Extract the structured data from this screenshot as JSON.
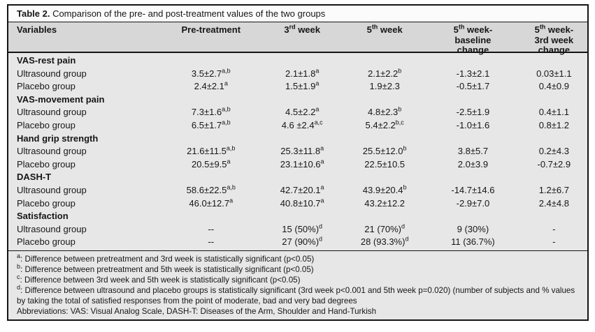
{
  "table": {
    "title": {
      "bold": "Table 2.",
      "rest": " Comparison of the pre- and post-treatment values of the two groups"
    },
    "headers": [
      {
        "text": "Variables"
      },
      {
        "text": "Pre-treatment"
      },
      {
        "num": "3",
        "sup": "rd",
        "after": " week"
      },
      {
        "num": "5",
        "sup": "th",
        "after": " week"
      },
      {
        "num": "5",
        "sup": "th",
        "after": " week-",
        "line2": "baseline",
        "line3": "change"
      },
      {
        "num": "5",
        "sup": "th",
        "after": " week-",
        "line2": "3rd week",
        "line3": "change"
      }
    ],
    "sections": [
      {
        "header": "VAS-rest pain",
        "rows": [
          {
            "label": "Ultrasound group",
            "cells": [
              {
                "v": "3.5±2.7",
                "s": "a,b"
              },
              {
                "v": "2.1±1.8",
                "s": "a"
              },
              {
                "v": "2.1±2.2",
                "s": "b"
              },
              {
                "v": "-1.3±2.1",
                "s": ""
              },
              {
                "v": "0.03±1.1",
                "s": ""
              }
            ]
          },
          {
            "label": "Placebo group",
            "cells": [
              {
                "v": "2.4±2.1",
                "s": "a"
              },
              {
                "v": "1.5±1.9",
                "s": "a"
              },
              {
                "v": "1.9±2.3",
                "s": ""
              },
              {
                "v": "-0.5±1.7",
                "s": ""
              },
              {
                "v": "0.4±0.9",
                "s": ""
              }
            ]
          }
        ]
      },
      {
        "header": "VAS-movement pain",
        "rows": [
          {
            "label": "Ultrasound group",
            "cells": [
              {
                "v": "7.3±1.6",
                "s": "a,b"
              },
              {
                "v": "4.5±2.2",
                "s": "a"
              },
              {
                "v": "4.8±2.3",
                "s": "b"
              },
              {
                "v": "-2.5±1.9",
                "s": ""
              },
              {
                "v": "0.4±1.1",
                "s": ""
              }
            ]
          },
          {
            "label": "Placebo group",
            "cells": [
              {
                "v": "6.5±1.7",
                "s": "a,b"
              },
              {
                "v": "4.6 ±2.4",
                "s": "a,c"
              },
              {
                "v": "5.4±2.2",
                "s": "b,c"
              },
              {
                "v": "-1.0±1.6",
                "s": ""
              },
              {
                "v": "0.8±1.2",
                "s": ""
              }
            ]
          }
        ]
      },
      {
        "header": "Hand grip strength",
        "rows": [
          {
            "label": "Ultrasound group",
            "cells": [
              {
                "v": "21.6±11.5",
                "s": "a,b"
              },
              {
                "v": "25.3±11.8",
                "s": "a"
              },
              {
                "v": "25.5±12.0",
                "s": "b"
              },
              {
                "v": "3.8±5.7",
                "s": ""
              },
              {
                "v": "0.2±4.3",
                "s": ""
              }
            ]
          },
          {
            "label": "Placebo group",
            "cells": [
              {
                "v": "20.5±9.5",
                "s": "a"
              },
              {
                "v": "23.1±10.6",
                "s": "a"
              },
              {
                "v": "22.5±10.5",
                "s": ""
              },
              {
                "v": "2.0±3.9",
                "s": ""
              },
              {
                "v": "-0.7±2.9",
                "s": ""
              }
            ]
          }
        ]
      },
      {
        "header": "DASH-T",
        "rows": [
          {
            "label": "Ultrasound group",
            "cells": [
              {
                "v": "58.6±22.5",
                "s": "a,b"
              },
              {
                "v": "42.7±20.1",
                "s": "a"
              },
              {
                "v": "43.9±20.4",
                "s": "b"
              },
              {
                "v": "-14.7±14.6",
                "s": ""
              },
              {
                "v": "1.2±6.7",
                "s": ""
              }
            ]
          },
          {
            "label": "Placebo group",
            "cells": [
              {
                "v": "46.0±12.7",
                "s": "a"
              },
              {
                "v": "40.8±10.7",
                "s": "a"
              },
              {
                "v": "43.2±12.2",
                "s": ""
              },
              {
                "v": "-2.9±7.0",
                "s": ""
              },
              {
                "v": "2.4±4.8",
                "s": ""
              }
            ]
          }
        ]
      },
      {
        "header": "Satisfaction",
        "rows": [
          {
            "label": "Ultrasound group",
            "cells": [
              {
                "v": "--",
                "s": ""
              },
              {
                "v": "15 (50%)",
                "s": "d"
              },
              {
                "v": "21 (70%)",
                "s": "d"
              },
              {
                "v": "9 (30%)",
                "s": ""
              },
              {
                "v": "-",
                "s": ""
              }
            ]
          },
          {
            "label": "Placebo group",
            "cells": [
              {
                "v": "--",
                "s": ""
              },
              {
                "v": "27 (90%)",
                "s": "d"
              },
              {
                "v": "28 (93.3%)",
                "s": "d"
              },
              {
                "v": "11 (36.7%)",
                "s": ""
              },
              {
                "v": "-",
                "s": ""
              }
            ]
          }
        ]
      }
    ],
    "footnotes": [
      {
        "sup": "a",
        "text": ": Difference between pretreatment and 3rd week is statistically significant (p<0.05)"
      },
      {
        "sup": "b",
        "text": ": Difference between pretreatment and 5th week is statistically significant (p<0.05)"
      },
      {
        "sup": "c",
        "text": ": Difference between 3rd week and 5th week is statistically significant (p<0.05)"
      },
      {
        "sup": "d",
        "text": ": Difference between ultrasound and placebo groups is statistically significant (3rd week p<0.001 and 5th week p=0.020) (number of subjects and % values by taking the total of satisfied responses from the point of moderate, bad and very bad degrees"
      },
      {
        "sup": "",
        "text": "Abbreviations: VAS: Visual Analog Scale, DASH-T: Diseases of the Arm, Shoulder and Hand-Turkish"
      }
    ],
    "colors": {
      "border": "#141414",
      "header_bg": "#d7d7d7",
      "body_bg": "#e7e7e7",
      "title_bg": "#fbfbfb"
    }
  }
}
